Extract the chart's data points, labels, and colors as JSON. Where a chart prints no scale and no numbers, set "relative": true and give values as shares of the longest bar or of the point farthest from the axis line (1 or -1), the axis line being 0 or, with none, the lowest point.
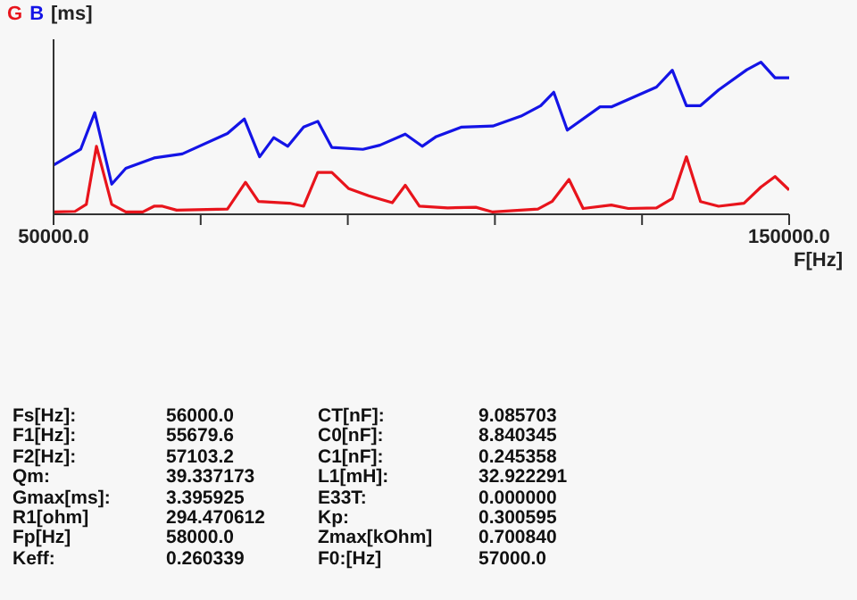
{
  "chart_data": {
    "type": "line",
    "relative": true,
    "ylabel": "[ms]",
    "xlabel": "F[Hz]",
    "legend": "top left",
    "xlim": [
      50000,
      150000
    ],
    "xticks": [
      {
        "value": 50000,
        "label": "50000.0"
      },
      {
        "value": 70000,
        "label": null
      },
      {
        "value": 90000,
        "label": null
      },
      {
        "value": 110000,
        "label": null
      },
      {
        "value": 130000,
        "label": null
      },
      {
        "value": 150000,
        "label": "150000.0"
      }
    ],
    "series": [
      {
        "name": "G",
        "color": "#e8141c",
        "x": [
          50000,
          52916,
          54451,
          55833,
          57905,
          59824,
          62126,
          63661,
          64812,
          66731,
          73638,
          76094,
          77859,
          82080,
          83999,
          85918,
          87836,
          90139,
          92825,
          96048,
          97813,
          99732,
          103569,
          107406,
          109709,
          115849,
          117767,
          120070,
          121988,
          125825,
          128128,
          131965,
          134114,
          136032,
          137951,
          140407,
          143861,
          146163,
          148081,
          150000
        ],
        "values": [
          0.015,
          0.019,
          0.065,
          0.447,
          0.065,
          0.015,
          0.015,
          0.053,
          0.053,
          0.027,
          0.034,
          0.21,
          0.084,
          0.073,
          0.053,
          0.275,
          0.275,
          0.168,
          0.122,
          0.076,
          0.191,
          0.053,
          0.042,
          0.046,
          0.015,
          0.034,
          0.084,
          0.229,
          0.038,
          0.061,
          0.038,
          0.042,
          0.103,
          0.378,
          0.084,
          0.053,
          0.073,
          0.179,
          0.248,
          0.16
        ]
      },
      {
        "name": "B",
        "color": "#1414e6",
        "x": [
          50000,
          53684,
          55603,
          57905,
          59824,
          63661,
          67498,
          73638,
          75940,
          78012,
          79931,
          81850,
          83999,
          85918,
          87836,
          92057,
          94360,
          97813,
          100115,
          102034,
          105488,
          109709,
          113546,
          116232,
          117997,
          119839,
          124290,
          125825,
          131965,
          134114,
          136032,
          137951,
          140407,
          144244,
          146163,
          148081,
          150000
        ],
        "values": [
          0.324,
          0.427,
          0.668,
          0.198,
          0.302,
          0.37,
          0.397,
          0.531,
          0.626,
          0.378,
          0.504,
          0.447,
          0.573,
          0.611,
          0.439,
          0.427,
          0.454,
          0.527,
          0.447,
          0.511,
          0.573,
          0.58,
          0.645,
          0.714,
          0.802,
          0.553,
          0.706,
          0.706,
          0.836,
          0.947,
          0.714,
          0.714,
          0.817,
          0.95,
          1,
          0.897,
          0.897
        ]
      }
    ],
    "annotations": [
      "Fs[Hz]:",
      "56000.0",
      "CT[nF]:",
      "9.085703",
      "F1[Hz]:",
      "55679.6",
      "C0[nF]:",
      "8.840345",
      "F2[Hz]:",
      "57103.2",
      "C1[nF]:",
      "0.245358",
      "Qm:",
      "39.337173",
      "L1[mH]:",
      "32.922291",
      "Gmax[ms]:",
      "3.395925",
      "E33T:",
      "0.000000",
      "R1[ohm]",
      "294.470612",
      "Kp:",
      "0.300595",
      "Fp[Hz]",
      "58000.0",
      "Zmax[kOhm]",
      "0.700840",
      "Keff:",
      "0.260339",
      "F0:[Hz]",
      "57000.0"
    ]
  }
}
